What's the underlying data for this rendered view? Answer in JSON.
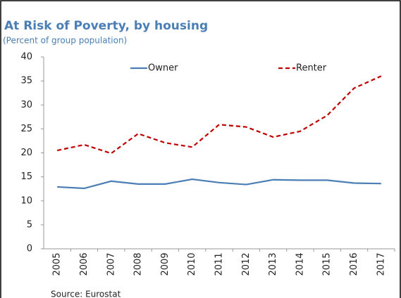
{
  "chart_data": {
    "type": "line",
    "title": "At Risk of Poverty, by housing",
    "subtitle": "(Percent of group population)",
    "source": "Source: Eurostat",
    "categories": [
      "2005",
      "2006",
      "2007",
      "2008",
      "2009",
      "2010",
      "2011",
      "2012",
      "2013",
      "2014",
      "2015",
      "2016",
      "2017"
    ],
    "series": [
      {
        "name": "Owner",
        "color": "#4a7eb4",
        "dash": false,
        "values": [
          12.9,
          12.6,
          14.1,
          13.5,
          13.5,
          14.5,
          13.8,
          13.4,
          14.4,
          14.3,
          14.3,
          13.7,
          13.6
        ]
      },
      {
        "name": "Renter",
        "color": "#c00000",
        "dash": true,
        "values": [
          20.5,
          21.7,
          19.9,
          24.0,
          22.1,
          21.2,
          25.9,
          25.4,
          23.3,
          24.5,
          27.8,
          33.5,
          36.0
        ]
      }
    ],
    "ylim": [
      0,
      40
    ],
    "yticks": [
      0,
      5,
      10,
      15,
      20,
      25,
      30,
      35,
      40
    ],
    "grid": false,
    "legend": "top"
  }
}
